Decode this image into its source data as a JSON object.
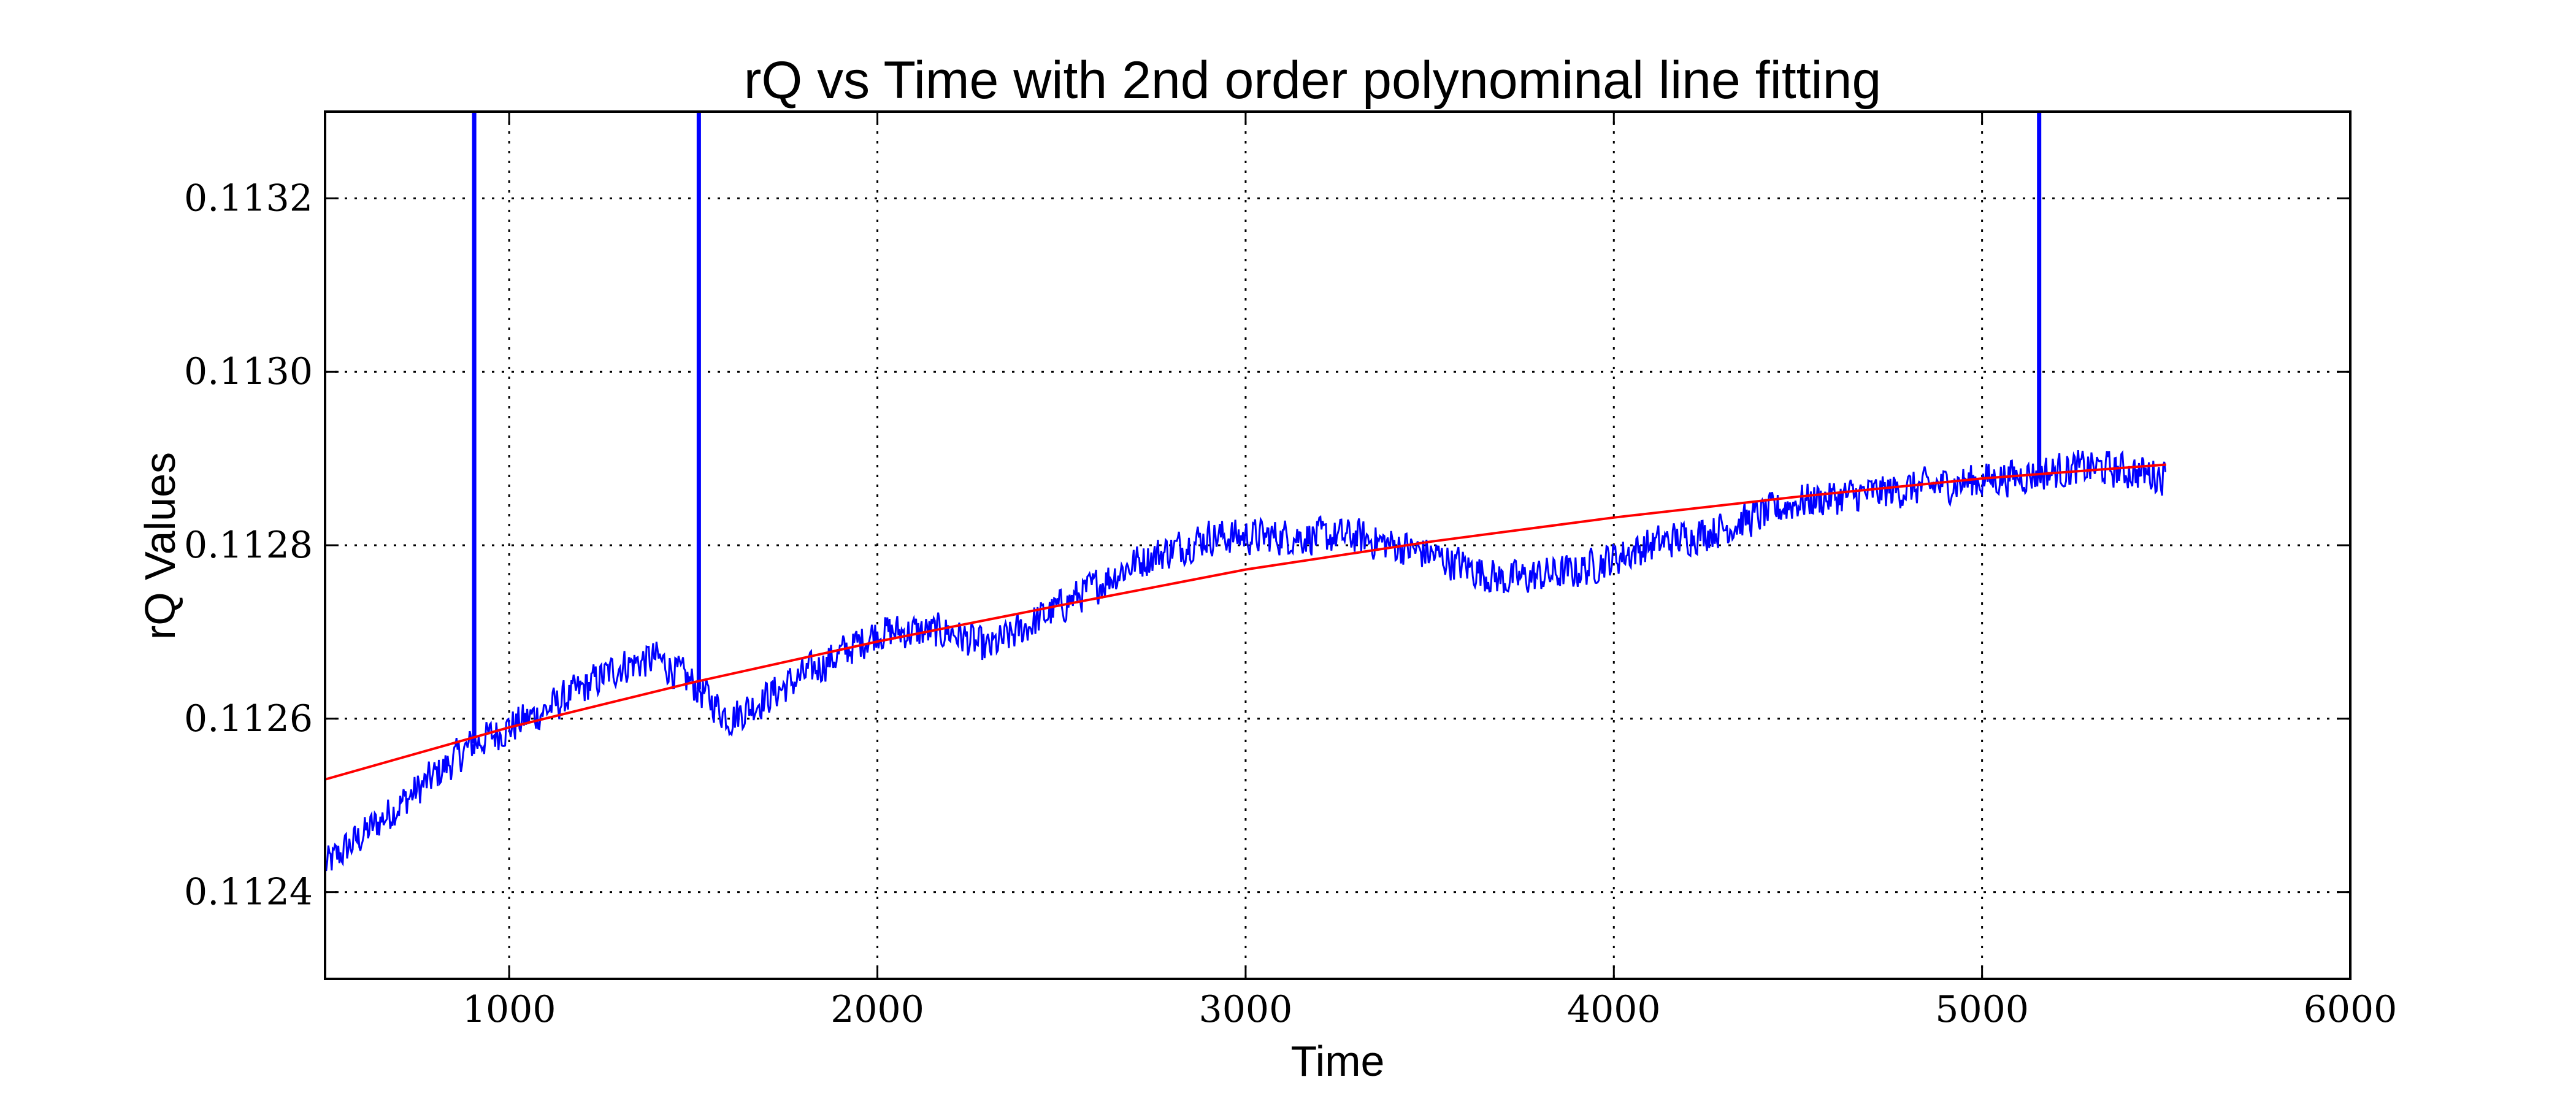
{
  "chart_data": {
    "type": "line",
    "title": "rQ vs Time with 2nd order polynominal line fitting",
    "xlabel": "Time",
    "ylabel": "rQ Values",
    "xlim": [
      500,
      6000
    ],
    "ylim": [
      0.1123,
      0.1133
    ],
    "grid": true,
    "legend": "none",
    "x_ticks": [
      1000,
      2000,
      3000,
      4000,
      5000,
      6000
    ],
    "y_ticks": [
      0.1124,
      0.1126,
      0.1128,
      0.113,
      0.1132
    ],
    "x_tick_labels": [
      "1000",
      "2000",
      "3000",
      "4000",
      "5000",
      "6000"
    ],
    "y_tick_labels": [
      "0.1124",
      "0.1126",
      "0.1128",
      "0.1130",
      "0.1132"
    ],
    "colors": {
      "data": "#0000ff",
      "fit": "#ff0000"
    },
    "series": [
      {
        "kind": "noisy-line",
        "color": "#0000ff",
        "x_range": [
          500,
          5500
        ],
        "trend_points": {
          "x": [
            500,
            700,
            900,
            1100,
            1300,
            1400,
            1500,
            1600,
            1800,
            2000,
            2200,
            2300,
            2500,
            2700,
            2900,
            3100,
            3300,
            3500,
            3700,
            3900,
            4100,
            4300,
            4500,
            4700,
            4900,
            5100,
            5300,
            5500
          ],
          "y": [
            0.11243,
            0.1125,
            0.11257,
            0.11261,
            0.11266,
            0.11267,
            0.11264,
            0.1126,
            0.11265,
            0.1127,
            0.1127,
            0.11268,
            0.11273,
            0.11278,
            0.11281,
            0.11281,
            0.11281,
            0.11279,
            0.11276,
            0.11277,
            0.1128,
            0.11282,
            0.11285,
            0.11286,
            0.11287,
            0.11288,
            0.11289,
            0.11288
          ]
        },
        "noise_amplitude": 2.5e-05,
        "spikes": [
          {
            "x": 905,
            "y_to": 0.1133
          },
          {
            "x": 1515,
            "y_to": 0.1133
          },
          {
            "x": 5155,
            "y_to": 0.1133
          }
        ]
      },
      {
        "kind": "fit-line",
        "color": "#ff0000",
        "x": [
          500,
          1000,
          1500,
          2000,
          2500,
          3000,
          3500,
          4000,
          4500,
          5000,
          5500
        ],
        "y": [
          0.11253,
          0.11259,
          0.112642,
          0.112689,
          0.112731,
          0.112772,
          0.112804,
          0.112832,
          0.112856,
          0.112877,
          0.112893
        ]
      }
    ]
  }
}
